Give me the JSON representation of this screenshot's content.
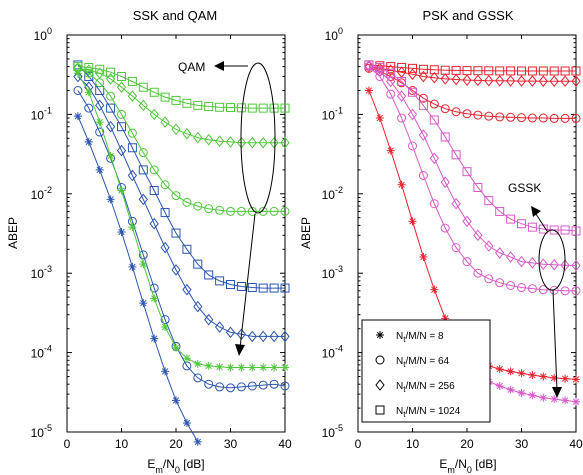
{
  "chart_data": [
    {
      "type": "line",
      "title": "SSK and QAM",
      "xlabel": "E_m/N_0 [dB]",
      "ylabel": "ABEP",
      "xlim": [
        0,
        40
      ],
      "ylim": [
        1e-05,
        1
      ],
      "yscale": "log",
      "grid": false,
      "x_ticks": [
        0,
        10,
        20,
        30,
        40
      ],
      "y_ticks": [
        {
          "base": "10",
          "exp": "-5"
        },
        {
          "base": "10",
          "exp": "-4"
        },
        {
          "base": "10",
          "exp": "-3"
        },
        {
          "base": "10",
          "exp": "-2"
        },
        {
          "base": "10",
          "exp": "-1"
        },
        {
          "base": "10",
          "exp": "0"
        }
      ],
      "annotations": [
        {
          "text": "QAM",
          "pointer": "arrow-left"
        }
      ],
      "series": [
        {
          "group": "SSK",
          "marker": "star",
          "color": "#2b55b0",
          "x": [
            2,
            4,
            6,
            8,
            10,
            12,
            14,
            16,
            18,
            20,
            22,
            24
          ],
          "y": [
            0.095,
            0.045,
            0.02,
            0.0085,
            0.0033,
            0.0012,
            0.00042,
            0.00015,
            5.8e-05,
            2.5e-05,
            1.3e-05,
            7.5e-06
          ]
        },
        {
          "group": "SSK",
          "marker": "circle",
          "color": "#2b55b0",
          "x": [
            2,
            4,
            6,
            8,
            10,
            12,
            14,
            16,
            18,
            20,
            22,
            24,
            26,
            28,
            30,
            32,
            34,
            36,
            38,
            40
          ],
          "y": [
            0.2,
            0.12,
            0.06,
            0.028,
            0.012,
            0.0045,
            0.0017,
            0.00065,
            0.00026,
            0.00012,
            6.8e-05,
            4.8e-05,
            4e-05,
            3.7e-05,
            3.6e-05,
            3.7e-05,
            3.8e-05,
            3.9e-05,
            4e-05,
            3.8e-05
          ]
        },
        {
          "group": "SSK",
          "marker": "diamond",
          "color": "#2b55b0",
          "x": [
            2,
            4,
            6,
            8,
            10,
            12,
            14,
            16,
            18,
            20,
            22,
            24,
            26,
            28,
            30,
            32,
            34,
            36,
            38,
            40
          ],
          "y": [
            0.3,
            0.22,
            0.13,
            0.07,
            0.035,
            0.017,
            0.0085,
            0.0042,
            0.0021,
            0.0011,
            0.00062,
            0.00038,
            0.00026,
            0.00021,
            0.00018,
            0.00017,
            0.00016,
            0.00016,
            0.00016,
            0.00016
          ]
        },
        {
          "group": "SSK",
          "marker": "square",
          "color": "#2b55b0",
          "x": [
            2,
            4,
            6,
            8,
            10,
            12,
            14,
            16,
            18,
            20,
            22,
            24,
            26,
            28,
            30,
            32,
            34,
            36,
            38,
            40
          ],
          "y": [
            0.42,
            0.3,
            0.2,
            0.12,
            0.07,
            0.038,
            0.02,
            0.011,
            0.0058,
            0.0032,
            0.002,
            0.0013,
            0.00095,
            0.0008,
            0.00072,
            0.00068,
            0.00066,
            0.00065,
            0.00065,
            0.00065
          ]
        },
        {
          "group": "QAM",
          "marker": "star",
          "color": "#4fc839",
          "x": [
            2,
            4,
            6,
            8,
            10,
            12,
            14,
            16,
            18,
            20,
            22,
            24,
            26,
            28,
            30,
            32,
            34,
            36,
            38,
            40
          ],
          "y": [
            0.33,
            0.19,
            0.08,
            0.03,
            0.011,
            0.0038,
            0.0013,
            0.00048,
            0.00021,
            0.000115,
            8.5e-05,
            7.2e-05,
            6.8e-05,
            6.6e-05,
            6.5e-05,
            6.5e-05,
            6.5e-05,
            6.5e-05,
            6.5e-05,
            6.5e-05
          ]
        },
        {
          "group": "QAM",
          "marker": "circle",
          "color": "#4fc839",
          "x": [
            2,
            4,
            6,
            8,
            10,
            12,
            14,
            16,
            18,
            20,
            22,
            24,
            26,
            28,
            30,
            32,
            34,
            36,
            38,
            40
          ],
          "y": [
            0.38,
            0.33,
            0.25,
            0.17,
            0.1,
            0.058,
            0.033,
            0.02,
            0.013,
            0.0095,
            0.0078,
            0.007,
            0.0065,
            0.0062,
            0.006,
            0.006,
            0.006,
            0.006,
            0.006,
            0.006
          ]
        },
        {
          "group": "QAM",
          "marker": "diamond",
          "color": "#4fc839",
          "x": [
            2,
            4,
            6,
            8,
            10,
            12,
            14,
            16,
            18,
            20,
            22,
            24,
            26,
            28,
            30,
            32,
            34,
            36,
            38,
            40
          ],
          "y": [
            0.38,
            0.36,
            0.33,
            0.28,
            0.22,
            0.17,
            0.13,
            0.1,
            0.08,
            0.065,
            0.057,
            0.051,
            0.048,
            0.046,
            0.045,
            0.044,
            0.044,
            0.044,
            0.044,
            0.044
          ]
        },
        {
          "group": "QAM",
          "marker": "square",
          "color": "#4fc839",
          "x": [
            2,
            4,
            6,
            8,
            10,
            12,
            14,
            16,
            18,
            20,
            22,
            24,
            26,
            28,
            30,
            32,
            34,
            36,
            38,
            40
          ],
          "y": [
            0.4,
            0.39,
            0.37,
            0.34,
            0.3,
            0.26,
            0.22,
            0.19,
            0.165,
            0.15,
            0.138,
            0.13,
            0.126,
            0.123,
            0.122,
            0.121,
            0.12,
            0.12,
            0.12,
            0.12
          ]
        }
      ]
    },
    {
      "type": "line",
      "title": "PSK and GSSK",
      "xlabel": "E_m/N_0 [dB]",
      "ylabel": "ABEP",
      "xlim": [
        0,
        40
      ],
      "ylim": [
        1e-05,
        1
      ],
      "yscale": "log",
      "grid": false,
      "x_ticks": [
        0,
        10,
        20,
        30,
        40
      ],
      "y_ticks": [
        {
          "base": "10",
          "exp": "-5"
        },
        {
          "base": "10",
          "exp": "-4"
        },
        {
          "base": "10",
          "exp": "-3"
        },
        {
          "base": "10",
          "exp": "-2"
        },
        {
          "base": "10",
          "exp": "-1"
        },
        {
          "base": "10",
          "exp": "0"
        }
      ],
      "annotations": [
        {
          "text": "GSSK",
          "pointer": "arrow-up-left"
        }
      ],
      "legend": {
        "placement": "bottom-left",
        "entries": [
          {
            "marker": "star",
            "label_main": "N",
            "label_sub": "t",
            "label_rest": "/M/N = 8"
          },
          {
            "marker": "circle",
            "label_main": "N",
            "label_sub": "t",
            "label_rest": "/M/N = 64"
          },
          {
            "marker": "diamond",
            "label_main": "N",
            "label_sub": "t",
            "label_rest": "/M/N = 256"
          },
          {
            "marker": "square",
            "label_main": "N",
            "label_sub": "t",
            "label_rest": "/M/N = 1024"
          }
        ]
      },
      "series": [
        {
          "group": "PSK",
          "marker": "star",
          "color": "#e8232e",
          "x": [
            2,
            4,
            6,
            8,
            10,
            12,
            14,
            16,
            18,
            20,
            22,
            24,
            26,
            28,
            30,
            32,
            34,
            36,
            38,
            40
          ],
          "y": [
            0.2,
            0.09,
            0.035,
            0.013,
            0.0045,
            0.0016,
            0.00062,
            0.00027,
            0.00014,
            9.5e-05,
            7.8e-05,
            6.8e-05,
            6.2e-05,
            5.8e-05,
            5.5e-05,
            5.2e-05,
            5e-05,
            4.8e-05,
            4.7e-05,
            4.6e-05
          ]
        },
        {
          "group": "PSK",
          "marker": "circle",
          "color": "#e8232e",
          "x": [
            2,
            4,
            6,
            8,
            10,
            12,
            14,
            16,
            18,
            20,
            22,
            24,
            26,
            28,
            30,
            32,
            34,
            36,
            38,
            40
          ],
          "y": [
            0.38,
            0.35,
            0.3,
            0.25,
            0.2,
            0.16,
            0.135,
            0.118,
            0.108,
            0.102,
            0.098,
            0.095,
            0.093,
            0.092,
            0.091,
            0.09,
            0.09,
            0.089,
            0.089,
            0.089
          ]
        },
        {
          "group": "PSK",
          "marker": "diamond",
          "color": "#e8232e",
          "x": [
            2,
            4,
            6,
            8,
            10,
            12,
            14,
            16,
            18,
            20,
            22,
            24,
            26,
            28,
            30,
            32,
            34,
            36,
            38,
            40
          ],
          "y": [
            0.4,
            0.38,
            0.36,
            0.34,
            0.32,
            0.3,
            0.29,
            0.28,
            0.275,
            0.27,
            0.268,
            0.266,
            0.265,
            0.264,
            0.263,
            0.263,
            0.262,
            0.262,
            0.262,
            0.262
          ]
        },
        {
          "group": "PSK",
          "marker": "square",
          "color": "#e8232e",
          "x": [
            2,
            4,
            6,
            8,
            10,
            12,
            14,
            16,
            18,
            20,
            22,
            24,
            26,
            28,
            30,
            32,
            34,
            36,
            38,
            40
          ],
          "y": [
            0.42,
            0.41,
            0.4,
            0.39,
            0.38,
            0.37,
            0.365,
            0.36,
            0.358,
            0.356,
            0.355,
            0.354,
            0.353,
            0.353,
            0.352,
            0.352,
            0.352,
            0.352,
            0.352,
            0.352
          ]
        },
        {
          "group": "GSSK",
          "marker": "star",
          "color": "#d85ac8",
          "x": [
            20,
            22,
            24,
            26,
            28,
            30,
            32,
            34,
            36,
            38,
            40
          ],
          "y": [
            6.2e-05,
            5.1e-05,
            4.3e-05,
            3.8e-05,
            3.4e-05,
            3.1e-05,
            2.9e-05,
            2.7e-05,
            2.6e-05,
            2.5e-05,
            2.4e-05
          ]
        },
        {
          "group": "GSSK",
          "marker": "circle",
          "color": "#d85ac8",
          "x": [
            2,
            4,
            6,
            8,
            10,
            12,
            14,
            16,
            18,
            20,
            22,
            24,
            26,
            28,
            30,
            32,
            34,
            36,
            38,
            40
          ],
          "y": [
            0.4,
            0.3,
            0.18,
            0.09,
            0.04,
            0.017,
            0.0075,
            0.0037,
            0.0021,
            0.0014,
            0.001,
            0.00085,
            0.00076,
            0.0007,
            0.00066,
            0.00064,
            0.00062,
            0.00061,
            0.0006,
            0.0006
          ]
        },
        {
          "group": "GSSK",
          "marker": "diamond",
          "color": "#d85ac8",
          "x": [
            2,
            4,
            6,
            8,
            10,
            12,
            14,
            16,
            18,
            20,
            22,
            24,
            26,
            28,
            30,
            32,
            34,
            36,
            38,
            40
          ],
          "y": [
            0.41,
            0.35,
            0.26,
            0.17,
            0.1,
            0.055,
            0.028,
            0.014,
            0.0075,
            0.0045,
            0.003,
            0.0022,
            0.0018,
            0.0016,
            0.0014,
            0.00135,
            0.0013,
            0.00128,
            0.00126,
            0.00125
          ]
        },
        {
          "group": "GSSK",
          "marker": "square",
          "color": "#d85ac8",
          "x": [
            2,
            4,
            6,
            8,
            10,
            12,
            14,
            16,
            18,
            20,
            22,
            24,
            26,
            28,
            30,
            32,
            34,
            36,
            38,
            40
          ],
          "y": [
            0.42,
            0.39,
            0.33,
            0.26,
            0.19,
            0.13,
            0.085,
            0.052,
            0.031,
            0.019,
            0.012,
            0.0082,
            0.006,
            0.0048,
            0.0042,
            0.0038,
            0.0036,
            0.0035,
            0.0035,
            0.0034
          ]
        }
      ]
    }
  ]
}
